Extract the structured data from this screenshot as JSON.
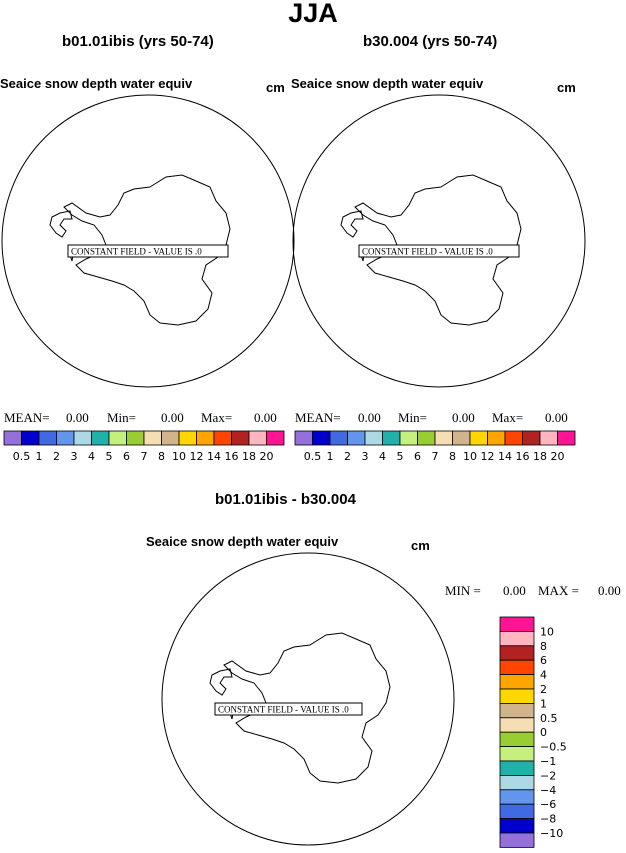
{
  "page_title": "JJA",
  "panels": [
    {
      "title": "b01.01ibis (yrs 50-74)",
      "field": "Seaice snow depth water equiv",
      "units": "cm",
      "notice": "CONSTANT FIELD - VALUE IS .0",
      "stats": {
        "mean_label": "MEAN=",
        "mean": "0.00",
        "min_label": "Min=",
        "min": "0.00",
        "max_label": "Max=",
        "max": "0.00"
      }
    },
    {
      "title": "b30.004 (yrs 50-74)",
      "field": "Seaice snow depth water equiv",
      "units": "cm",
      "notice": "CONSTANT FIELD - VALUE IS .0",
      "stats": {
        "mean_label": "MEAN=",
        "mean": "0.00",
        "min_label": "Min=",
        "min": "0.00",
        "max_label": "Max=",
        "max": "0.00"
      }
    }
  ],
  "diff_panel": {
    "title": "b01.01ibis - b30.004",
    "field": "Seaice snow depth water equiv",
    "units": "cm",
    "notice": "CONSTANT FIELD - VALUE IS .0",
    "min_label": "MIN =",
    "min": "0.00",
    "max_label": "MAX =",
    "max": "0.00"
  },
  "colorbar": {
    "labels": [
      "0.5",
      "1",
      "2",
      "3",
      "4",
      "5",
      "6",
      "7",
      "8",
      "10",
      "12",
      "14",
      "16",
      "18",
      "20"
    ],
    "colors": [
      "#9370db",
      "#0000cd",
      "#4169e1",
      "#6495ed",
      "#add8e6",
      "#20b2aa",
      "#c5f07f",
      "#9acd32",
      "#f5deb3",
      "#d2b48c",
      "#ffd700",
      "#ffa500",
      "#ff4500",
      "#b22222",
      "#ffb6c1",
      "#ff1493"
    ]
  },
  "diff_colorbar": {
    "labels": [
      "10",
      "8",
      "6",
      "4",
      "2",
      "1",
      "0.5",
      "0",
      "−0.5",
      "−1",
      "−2",
      "−4",
      "−6",
      "−8",
      "−10"
    ],
    "colors": [
      "#ff1493",
      "#ffb6c1",
      "#b22222",
      "#ff4500",
      "#ffa500",
      "#ffd700",
      "#d2b48c",
      "#f5deb3",
      "#9acd32",
      "#c5f07f",
      "#20b2aa",
      "#add8e6",
      "#6495ed",
      "#4169e1",
      "#0000cd",
      "#9370db"
    ]
  },
  "chart_data": [
    {
      "type": "heatmap",
      "title": "b01.01ibis (yrs 50-74)",
      "subtitle": "Seaice snow depth water equiv",
      "units": "cm",
      "values": "constant 0.0",
      "mean": 0.0,
      "min": 0.0,
      "max": 0.0,
      "levels": [
        0.5,
        1,
        2,
        3,
        4,
        5,
        6,
        7,
        8,
        10,
        12,
        14,
        16,
        18,
        20
      ]
    },
    {
      "type": "heatmap",
      "title": "b30.004 (yrs 50-74)",
      "subtitle": "Seaice snow depth water equiv",
      "units": "cm",
      "values": "constant 0.0",
      "mean": 0.0,
      "min": 0.0,
      "max": 0.0,
      "levels": [
        0.5,
        1,
        2,
        3,
        4,
        5,
        6,
        7,
        8,
        10,
        12,
        14,
        16,
        18,
        20
      ]
    },
    {
      "type": "heatmap",
      "title": "b01.01ibis - b30.004",
      "subtitle": "Seaice snow depth water equiv",
      "units": "cm",
      "values": "constant 0.0",
      "min": 0.0,
      "max": 0.0,
      "levels": [
        -10,
        -8,
        -6,
        -4,
        -2,
        -1,
        -0.5,
        0,
        0.5,
        1,
        2,
        4,
        6,
        8,
        10
      ]
    }
  ]
}
